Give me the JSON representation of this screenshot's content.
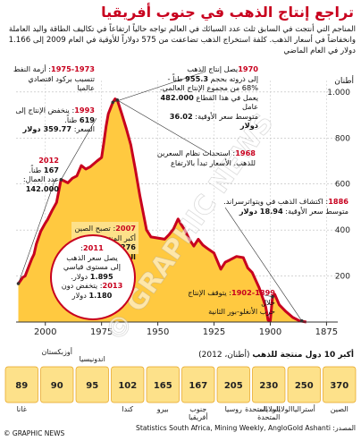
{
  "title": "تراجع إنتاج الذهب في جنوب أفريقيا",
  "intro": "المناجم التي أنتجت في السابق ثلث عدد السبائك في العالم تواجه حالياً ارتفاعاً في تكاليف الطاقة واليد العاملة وانخفاضاً في أسعار الذهب. كلفة استخراج الذهب تضاعفت من 575 دولاراً للأوقية في العام 2009 إلى 1.166 دولار في العام الماضي",
  "y_title": "أطنان",
  "y_ticks": [
    "1.000",
    "800",
    "600",
    "400",
    "200"
  ],
  "x_ticks": [
    "2000",
    "1975",
    "1950",
    "1925",
    "1900",
    "1875"
  ],
  "colors": {
    "accent": "#c8001e",
    "area": "#ffc940",
    "bars": "#fde18a"
  },
  "annotations": {
    "a1970": {
      "year": "1970",
      "l1": "يصل إنتاج الذهب",
      "l2": "إلى ذروته بحجم ",
      "v1": "955.3",
      "l3": " طناً -",
      "l4": "68% من مجموع الإنتاج العالمي.",
      "l5": "يعمل في هذا القطاع ",
      "v2": "482.000",
      "l6": " عامل",
      "l7": "متوسط سعر الأوقية: ",
      "v3": "36.02 دولار"
    },
    "a1975": {
      "year": "1975-1973",
      "l1": ": أزمة النفط",
      "l2": "تتسبب بركود اقتصادي",
      "l3": "عالميا"
    },
    "a1993": {
      "year": "1993",
      "l1": ": ينخفض الإنتاج إلى",
      "v1": "619",
      "l2": " طناً.",
      "l3": "السعر: ",
      "v2": "359.77 دولار"
    },
    "a2012": {
      "year": "2012",
      "l1": ":",
      "v1": "167",
      "l2": " طناً.",
      "l3": "عدد العمال:",
      "v2": "142.000"
    },
    "a1968": {
      "year": "1968",
      "l1": ": استحداث نظام السعرين",
      "l2": "للذهب. الأسعار تبدأ بالارتفاع"
    },
    "a1886": {
      "year": "1886",
      "l1": ": اكتشاف الذهب في ويتواترسراند.",
      "l2": "متوسط سعر الأوقية: ",
      "v1": "18.94 دولار"
    },
    "a2007": {
      "year": "2007",
      "l1": ": تصبح الصين",
      "l2": "أكبر المنتجين:",
      "v1": "276 طناً من الذهب"
    },
    "a2011": {
      "year": "2011",
      "l1": ":",
      "l2": "يصل سعر الذهب",
      "l3": "إلى مستوى قياسي",
      "v1": "1.895",
      "l4": " دولار.",
      "year2": "2013",
      "l5": ": يتخفض دون",
      "v2": "1.180",
      "l6": " دولار"
    },
    "a1899": {
      "year": "1902-1899",
      "l1": ": يتوقف الإنتاج خلال",
      "l2": "حرب الأنغلو-بور الثانية"
    }
  },
  "bars_title": "أكبر 10 دول منتجة للذهب",
  "bars_unit": " (أطنان، 2012)",
  "countries": [
    {
      "name": "الصين",
      "value": 370
    },
    {
      "name": "أستراليا",
      "value": 250
    },
    {
      "name": "الولايات المتحدة",
      "value": 230
    },
    {
      "name": "روسيا",
      "value": 205
    },
    {
      "name": "جنوب أفريقيا",
      "value": 167
    },
    {
      "name": "بيرو",
      "value": 165
    },
    {
      "name": "كندا",
      "value": 102
    },
    {
      "name": "اندونيسيا",
      "value": 95
    },
    {
      "name": "أوزبكستان",
      "value": 90
    },
    {
      "name": "غانا",
      "value": 89
    }
  ],
  "source": "المصدر: Statistics South Africa, Mining Weekly, AngloGold Ashanti",
  "credit": "© GRAPHIC NEWS",
  "watermark": "© GRAPHIC NEWS",
  "chart_data": {
    "type": "area",
    "title": "تراجع إنتاج الذهب في جنوب أفريقيا",
    "ylabel": "أطنان",
    "x_order": "descending",
    "xlim": [
      2013,
      1870
    ],
    "ylim": [
      0,
      1050
    ],
    "grid": true,
    "x": [
      1884,
      1887,
      1890,
      1893,
      1896,
      1898,
      1899,
      1900,
      1901,
      1902,
      1903,
      1905,
      1908,
      1910,
      1912,
      1915,
      1918,
      1920,
      1922,
      1925,
      1928,
      1930,
      1932,
      1934,
      1936,
      1938,
      1940,
      1941,
      1943,
      1945,
      1947,
      1950,
      1953,
      1955,
      1958,
      1960,
      1962,
      1964,
      1966,
      1967,
      1968,
      1969,
      1970,
      1971,
      1972,
      1973,
      1974,
      1975,
      1977,
      1980,
      1982,
      1984,
      1986,
      1988,
      1990,
      1992,
      1993,
      1995,
      1997,
      1999,
      2000,
      2002,
      2004,
      2005,
      2006,
      2007,
      2008,
      2009,
      2010,
      2011,
      2012
    ],
    "values": [
      0,
      5,
      20,
      45,
      75,
      120,
      110,
      5,
      8,
      65,
      95,
      150,
      215,
      235,
      280,
      285,
      270,
      260,
      230,
      300,
      320,
      335,
      360,
      330,
      360,
      400,
      430,
      448,
      405,
      380,
      360,
      365,
      370,
      400,
      550,
      665,
      770,
      840,
      905,
      935,
      965,
      970,
      955,
      930,
      905,
      850,
      780,
      715,
      700,
      675,
      665,
      680,
      635,
      625,
      605,
      615,
      619,
      520,
      485,
      445,
      430,
      395,
      340,
      295,
      275,
      250,
      225,
      200,
      195,
      180,
      167
    ]
  }
}
